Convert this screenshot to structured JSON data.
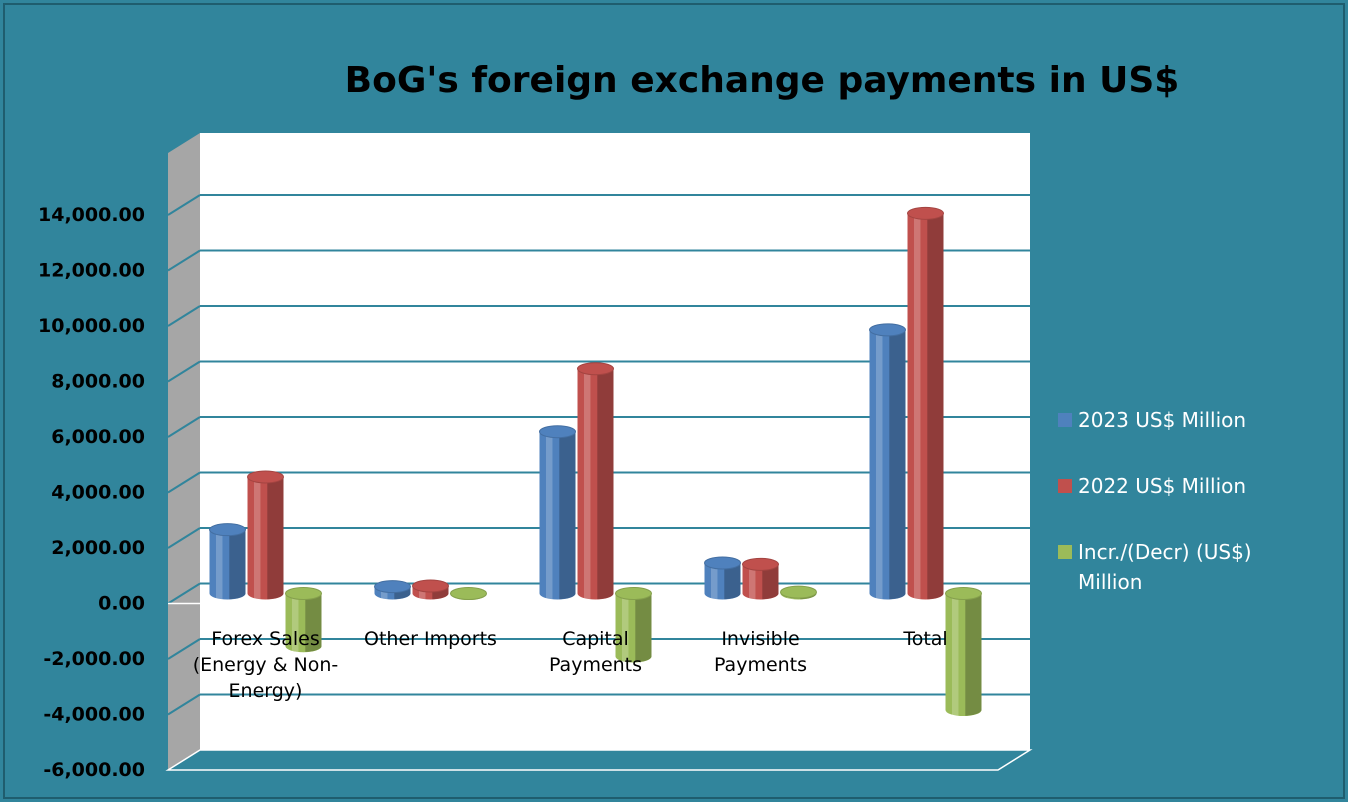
{
  "chart_data": {
    "type": "bar3d",
    "title": "BoG's foreign exchange payments in US$",
    "categories": [
      "Forex Sales (Energy & Non-Energy)",
      "Other Imports",
      "Capital Payments",
      "Invisible Payments",
      "Total"
    ],
    "series": [
      {
        "name": "2023   US$ Million",
        "color": "#4f81bd",
        "values": [
          2300,
          250,
          5830,
          1100,
          9500
        ]
      },
      {
        "name": "2022    US$ Million",
        "color": "#c0504d",
        "values": [
          4200,
          270,
          8100,
          1050,
          13700
        ]
      },
      {
        "name": "Incr./(Decr) (US$) Million",
        "color": "#9bbb59",
        "values": [
          -1900,
          -20,
          -2270,
          50,
          -4200
        ]
      }
    ],
    "ylim": [
      -6000,
      14000
    ],
    "yticks": [
      {
        "value": -6000,
        "label": "-6,000.00"
      },
      {
        "value": -4000,
        "label": "-4,000.00"
      },
      {
        "value": -2000,
        "label": "-2,000.00"
      },
      {
        "value": 0,
        "label": "0.00"
      },
      {
        "value": 2000,
        "label": "2,000.00"
      },
      {
        "value": 4000,
        "label": "4,000.00"
      },
      {
        "value": 6000,
        "label": "6,000.00"
      },
      {
        "value": 8000,
        "label": "8,000.00"
      },
      {
        "value": 10000,
        "label": "10,000.00"
      },
      {
        "value": 12000,
        "label": "12,000.00"
      },
      {
        "value": 14000,
        "label": "14,000.00"
      }
    ],
    "grid": true,
    "legend": "right"
  }
}
